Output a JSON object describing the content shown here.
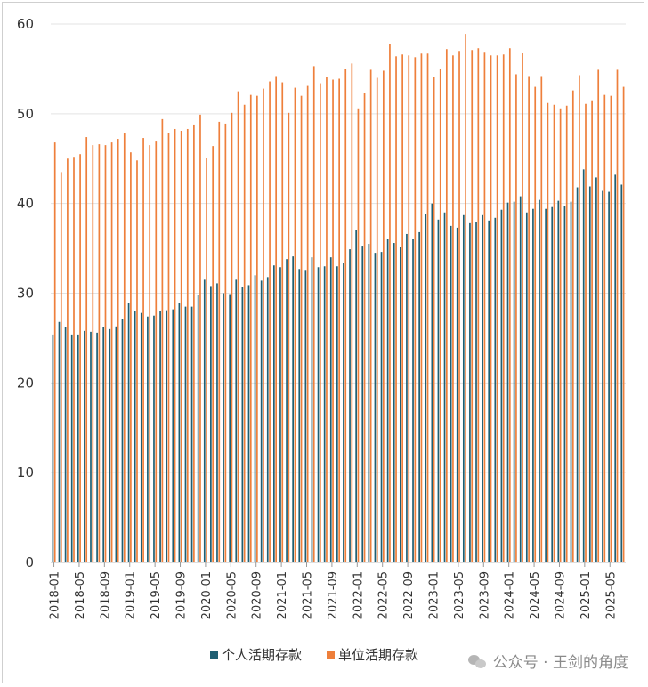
{
  "chart_data": {
    "type": "bar",
    "ylim": [
      0,
      60
    ],
    "yticks": [
      0,
      10,
      20,
      30,
      40,
      50,
      60
    ],
    "grid": true,
    "legend_position": "bottom",
    "x": [
      "2018-01",
      "2018-02",
      "2018-03",
      "2018-04",
      "2018-05",
      "2018-06",
      "2018-07",
      "2018-08",
      "2018-09",
      "2018-10",
      "2018-11",
      "2018-12",
      "2019-01",
      "2019-02",
      "2019-03",
      "2019-04",
      "2019-05",
      "2019-06",
      "2019-07",
      "2019-08",
      "2019-09",
      "2019-10",
      "2019-11",
      "2019-12",
      "2020-01",
      "2020-02",
      "2020-03",
      "2020-04",
      "2020-05",
      "2020-06",
      "2020-07",
      "2020-08",
      "2020-09",
      "2020-10",
      "2020-11",
      "2020-12",
      "2021-01",
      "2021-02",
      "2021-03",
      "2021-04",
      "2021-05",
      "2021-06",
      "2021-07",
      "2021-08",
      "2021-09",
      "2021-10",
      "2021-11",
      "2021-12",
      "2022-01",
      "2022-02",
      "2022-03",
      "2022-04",
      "2022-05",
      "2022-06",
      "2022-07",
      "2022-08",
      "2022-09",
      "2022-10",
      "2022-11",
      "2022-12",
      "2023-01",
      "2023-02",
      "2023-03",
      "2023-04",
      "2023-05",
      "2023-06",
      "2023-07",
      "2023-08",
      "2023-09",
      "2023-10",
      "2023-11",
      "2023-12",
      "2024-01",
      "2024-02",
      "2024-03",
      "2024-04",
      "2024-05",
      "2024-06",
      "2024-07",
      "2024-08",
      "2024-09",
      "2024-10",
      "2024-11",
      "2024-12",
      "2025-01",
      "2025-02",
      "2025-03",
      "2025-04",
      "2025-05",
      "2025-06",
      "2025-07"
    ],
    "xtick_labels": [
      "2018-01",
      "2018-05",
      "2018-09",
      "2019-01",
      "2019-05",
      "2019-09",
      "2020-01",
      "2020-05",
      "2020-09",
      "2021-01",
      "2021-05",
      "2021-09",
      "2022-01",
      "2022-05",
      "2022-09",
      "2023-01",
      "2023-05",
      "2023-09",
      "2024-01",
      "2024-05",
      "2024-09",
      "2025-01",
      "2025-05"
    ],
    "series": [
      {
        "name": "个人活期存款",
        "color": "#1f5f73",
        "values": [
          25.4,
          26.8,
          26.2,
          25.4,
          25.4,
          25.8,
          25.7,
          25.6,
          26.2,
          26.0,
          26.3,
          27.1,
          28.9,
          28.0,
          27.8,
          27.4,
          27.5,
          28.0,
          28.1,
          28.2,
          28.9,
          28.5,
          28.5,
          29.8,
          31.5,
          30.8,
          31.1,
          30.0,
          29.9,
          31.5,
          30.7,
          30.9,
          32.0,
          31.4,
          31.8,
          33.1,
          32.9,
          33.8,
          34.1,
          32.7,
          32.6,
          34.0,
          32.9,
          33.0,
          34.0,
          33.0,
          33.4,
          34.9,
          37.0,
          35.3,
          35.5,
          34.5,
          34.6,
          36.0,
          35.6,
          35.2,
          36.6,
          36.0,
          36.8,
          38.8,
          40.0,
          38.2,
          39.0,
          37.5,
          37.3,
          38.7,
          37.8,
          37.9,
          38.7,
          38.1,
          38.4,
          39.3,
          40.1,
          40.2,
          40.8,
          39.0,
          39.4,
          40.4,
          39.4,
          39.6,
          40.3,
          39.7,
          40.2,
          41.8,
          43.8,
          41.9,
          42.9,
          41.4,
          41.3,
          43.2,
          42.1
        ]
      },
      {
        "name": "单位活期存款",
        "color": "#ee7f3b",
        "values": [
          46.8,
          43.5,
          45.0,
          45.2,
          45.5,
          47.4,
          46.5,
          46.6,
          46.5,
          46.8,
          47.2,
          47.8,
          45.7,
          44.8,
          47.3,
          46.5,
          46.9,
          49.4,
          47.9,
          48.3,
          48.1,
          48.3,
          48.8,
          49.9,
          45.1,
          46.4,
          49.1,
          48.9,
          50.1,
          52.5,
          51.0,
          52.1,
          52.0,
          52.8,
          53.6,
          54.2,
          53.5,
          50.1,
          52.9,
          52.0,
          53.1,
          55.3,
          53.4,
          54.1,
          53.8,
          53.9,
          55.0,
          55.6,
          50.6,
          52.3,
          54.9,
          54.0,
          54.8,
          57.8,
          56.4,
          56.6,
          56.5,
          56.3,
          56.7,
          56.7,
          54.1,
          55.0,
          57.2,
          56.5,
          57.0,
          58.9,
          57.1,
          57.3,
          56.9,
          56.5,
          56.5,
          56.6,
          57.3,
          54.4,
          56.8,
          54.2,
          53.0,
          54.2,
          51.2,
          51.0,
          50.6,
          50.9,
          52.6,
          54.3,
          51.1,
          51.5,
          54.9,
          52.1,
          52.0,
          54.9,
          53.0
        ]
      }
    ]
  },
  "watermark": {
    "text": "公众号 · 王剑的角度"
  }
}
